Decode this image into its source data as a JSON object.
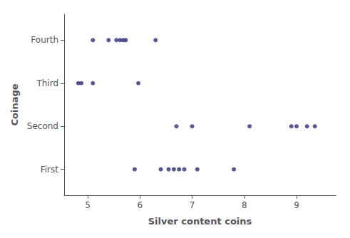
{
  "chart_data": {
    "type": "scatter",
    "xlabel": "Silver content coins",
    "ylabel": "Coinage",
    "color": "#2e2e7a",
    "x": [
      5.1,
      5.4,
      5.55,
      5.62,
      5.68,
      5.73,
      6.3,
      4.82,
      4.88,
      5.1,
      5.97,
      6.7,
      7.0,
      8.1,
      8.9,
      9.0,
      9.2,
      9.35,
      5.9,
      6.4,
      6.55,
      6.65,
      6.75,
      6.85,
      7.1,
      7.8
    ],
    "values": [
      4,
      4,
      4,
      4,
      4,
      4,
      4,
      3,
      3,
      3,
      3,
      2,
      2,
      2,
      2,
      2,
      2,
      2,
      1,
      1,
      1,
      1,
      1,
      1,
      1,
      1
    ],
    "xlim": [
      4.55,
      9.75
    ],
    "xticks": [
      5,
      6,
      7,
      8,
      9
    ],
    "ylim": [
      0.4,
      4.6
    ],
    "yticks": [
      {
        "value": 1,
        "label": "First"
      },
      {
        "value": 2,
        "label": "Second"
      },
      {
        "value": 3,
        "label": "Third"
      },
      {
        "value": 4,
        "label": "Fourth"
      }
    ],
    "grid": false
  }
}
